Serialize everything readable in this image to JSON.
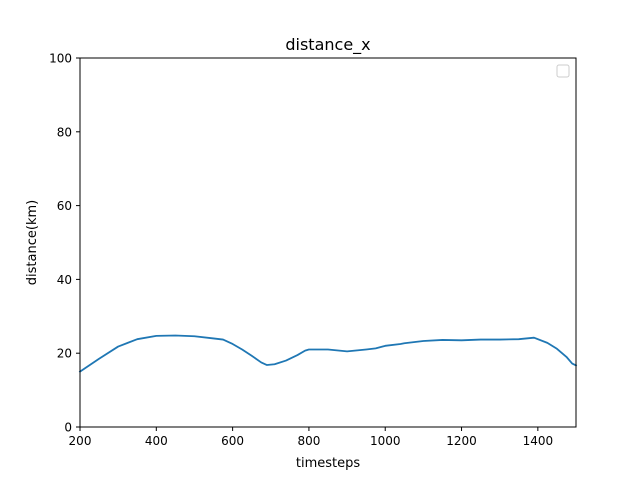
{
  "chart_data": {
    "type": "line",
    "title": "distance_x",
    "xlabel": "timesteps",
    "ylabel": "distance(km)",
    "xlim": [
      200,
      1500
    ],
    "ylim": [
      0,
      100
    ],
    "xticks": [
      200,
      400,
      600,
      800,
      1000,
      1200,
      1400
    ],
    "yticks": [
      0,
      20,
      40,
      60,
      80,
      100
    ],
    "grid": false,
    "legend": {
      "placement": "top-right",
      "entries": []
    },
    "series": [
      {
        "color": "#1f77b4",
        "x": [
          200,
          250,
          300,
          350,
          400,
          450,
          500,
          550,
          575,
          600,
          625,
          650,
          675,
          690,
          710,
          740,
          770,
          790,
          800,
          850,
          900,
          950,
          975,
          1000,
          1040,
          1050,
          1100,
          1150,
          1200,
          1250,
          1300,
          1350,
          1390,
          1425,
          1450,
          1475,
          1490,
          1500
        ],
        "values": [
          15.0,
          18.5,
          21.8,
          23.8,
          24.7,
          24.8,
          24.6,
          24.0,
          23.7,
          22.5,
          21.0,
          19.3,
          17.5,
          16.8,
          17.0,
          18.0,
          19.5,
          20.7,
          21.0,
          21.0,
          20.5,
          21.0,
          21.3,
          22.0,
          22.5,
          22.7,
          23.3,
          23.6,
          23.5,
          23.7,
          23.7,
          23.8,
          24.2,
          22.8,
          21.2,
          19.0,
          17.2,
          16.7
        ]
      }
    ]
  }
}
